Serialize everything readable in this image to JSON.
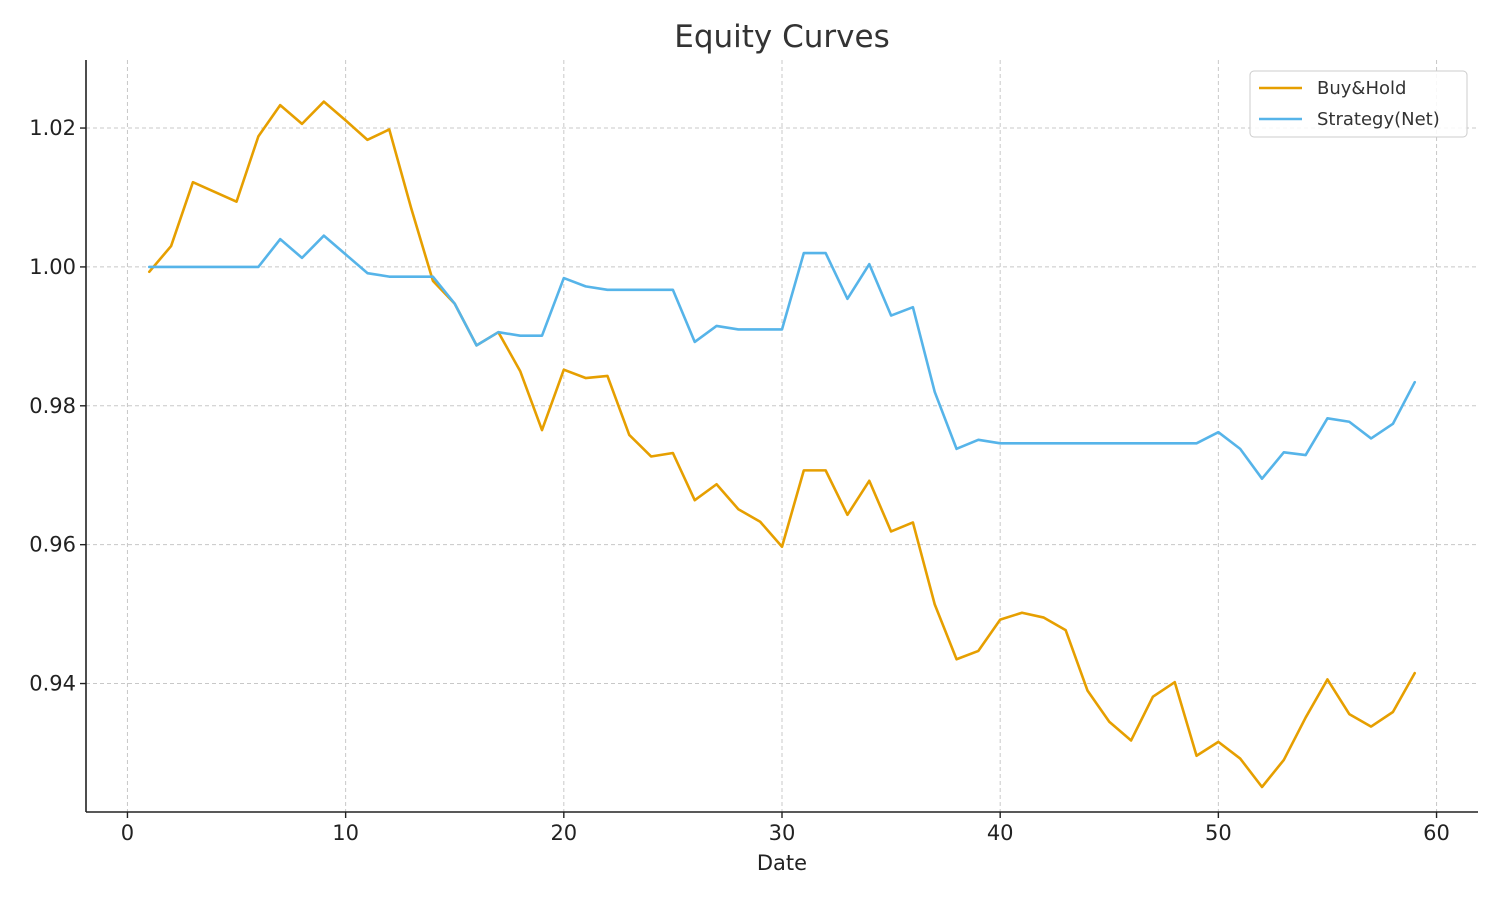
{
  "chart_data": {
    "type": "line",
    "title": "Equity Curves",
    "xlabel": "Date",
    "ylabel": "",
    "xlim": [
      -1.9,
      61.9
    ],
    "ylim": [
      0.9215,
      1.0298
    ],
    "xticks": [
      0,
      10,
      20,
      30,
      40,
      50,
      60
    ],
    "xtick_labels": [
      "0",
      "10",
      "20",
      "30",
      "40",
      "50",
      "60"
    ],
    "yticks": [
      0.94,
      0.96,
      0.98,
      1.0,
      1.02
    ],
    "ytick_labels": [
      "0.94",
      "0.96",
      "0.98",
      "1.00",
      "1.02"
    ],
    "grid": true,
    "legend_position": "top-right",
    "x": [
      1,
      2,
      3,
      4,
      5,
      6,
      7,
      8,
      9,
      10,
      11,
      12,
      13,
      14,
      15,
      16,
      17,
      18,
      19,
      20,
      21,
      22,
      23,
      24,
      25,
      26,
      27,
      28,
      29,
      30,
      31,
      32,
      33,
      34,
      35,
      36,
      37,
      38,
      39,
      40,
      41,
      42,
      43,
      44,
      45,
      46,
      47,
      48,
      49,
      50,
      51,
      52,
      53,
      54,
      55,
      56,
      57,
      58,
      59
    ],
    "series": [
      {
        "name": "Buy&Hold",
        "color": "#E69F00",
        "values": [
          0.9993,
          1.003,
          1.0122,
          1.0108,
          1.0094,
          1.0188,
          1.0233,
          1.0206,
          1.0238,
          1.0211,
          1.0183,
          1.0198,
          1.0085,
          0.998,
          0.9947,
          0.9887,
          0.9906,
          0.985,
          0.9765,
          0.9852,
          0.984,
          0.9843,
          0.9758,
          0.9727,
          0.9732,
          0.9664,
          0.9687,
          0.9651,
          0.9633,
          0.9597,
          0.9707,
          0.9707,
          0.9643,
          0.9692,
          0.9619,
          0.9632,
          0.9514,
          0.9435,
          0.9447,
          0.9492,
          0.9502,
          0.9495,
          0.9477,
          0.939,
          0.9345,
          0.9318,
          0.9381,
          0.9402,
          0.9296,
          0.9316,
          0.9292,
          0.9251,
          0.929,
          0.9351,
          0.9406,
          0.9356,
          0.9338,
          0.9359,
          0.9415
        ]
      },
      {
        "name": "Strategy(Net)",
        "color": "#56B4E9",
        "values": [
          1.0,
          1.0,
          1.0,
          1.0,
          1.0,
          1.0,
          1.004,
          1.0013,
          1.0045,
          1.0018,
          0.9991,
          0.9986,
          0.9986,
          0.9986,
          0.9947,
          0.9887,
          0.9906,
          0.9901,
          0.9901,
          0.9984,
          0.9972,
          0.9967,
          0.9967,
          0.9967,
          0.9967,
          0.9892,
          0.9915,
          0.991,
          0.991,
          0.991,
          1.002,
          1.002,
          0.9954,
          1.0004,
          0.993,
          0.9942,
          0.982,
          0.9738,
          0.9751,
          0.9746,
          0.9746,
          0.9746,
          0.9746,
          0.9746,
          0.9746,
          0.9746,
          0.9746,
          0.9746,
          0.9746,
          0.9762,
          0.9738,
          0.9695,
          0.9733,
          0.9729,
          0.9782,
          0.9777,
          0.9753,
          0.9774,
          0.9834
        ]
      }
    ]
  }
}
